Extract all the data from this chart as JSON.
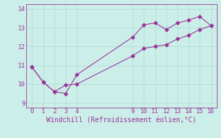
{
  "line1_x": [
    0,
    1,
    2,
    3,
    4,
    9,
    10,
    11,
    12,
    13,
    14,
    15,
    16
  ],
  "line1_y": [
    10.9,
    10.1,
    9.6,
    9.5,
    10.5,
    12.5,
    13.15,
    13.25,
    12.9,
    13.25,
    13.4,
    13.6,
    13.1
  ],
  "line2_x": [
    0,
    1,
    2,
    3,
    4,
    9,
    10,
    11,
    12,
    13,
    14,
    15,
    16
  ],
  "line2_y": [
    10.9,
    10.1,
    9.6,
    9.95,
    10.0,
    11.5,
    11.9,
    12.0,
    12.1,
    12.4,
    12.6,
    12.9,
    13.1
  ],
  "color": "#993399",
  "bg_color": "#cceee8",
  "grid_color": "#b0ddd8",
  "xlabel": "Windchill (Refroidissement éolien,°C)",
  "xlim": [
    -0.5,
    16.5
  ],
  "ylim": [
    8.75,
    14.25
  ],
  "xticks": [
    0,
    1,
    2,
    3,
    4,
    9,
    10,
    11,
    12,
    13,
    14,
    15,
    16
  ],
  "yticks": [
    9,
    10,
    11,
    12,
    13,
    14
  ],
  "xlabel_fontsize": 7,
  "tick_fontsize": 6.5,
  "marker": "D",
  "markersize": 2.5,
  "linewidth": 0.8
}
